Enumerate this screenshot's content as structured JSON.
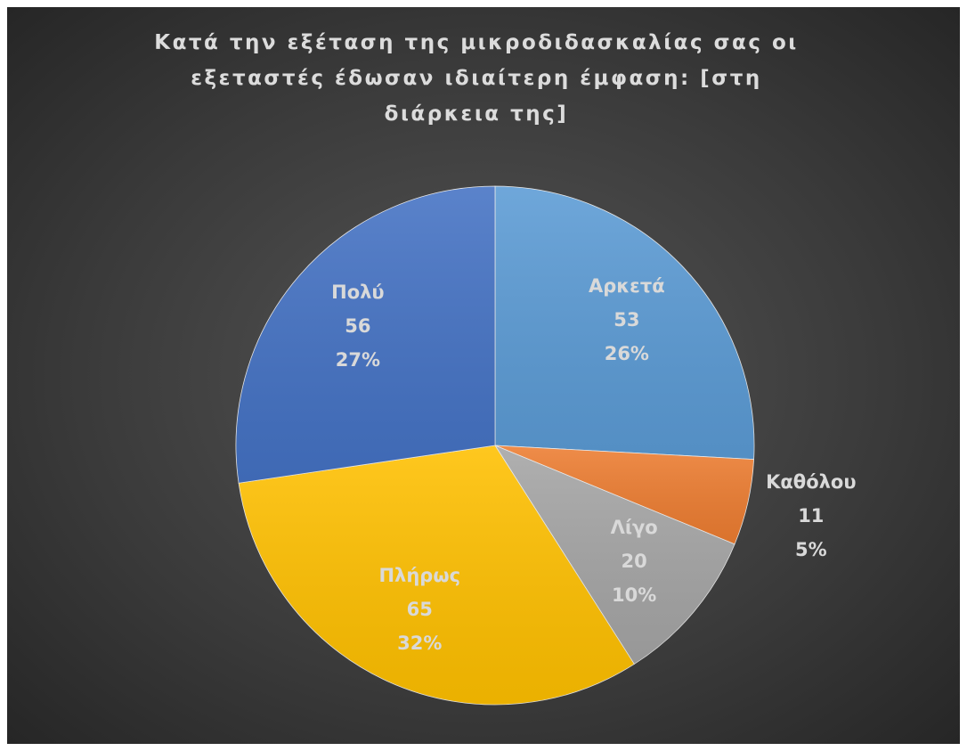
{
  "chart_data": {
    "type": "pie",
    "title": "Κατά την εξέταση της μικροδιδασκαλίας σας οι εξεταστές έδωσαν ιδιαίτερη έμφαση: [στη διάρκεια της]",
    "categories": [
      "Αρκετά",
      "Καθόλου",
      "Λίγο",
      "Πλήρως",
      "Πολύ"
    ],
    "values": [
      53,
      11,
      20,
      65,
      56
    ],
    "percent_labels": [
      "26%",
      "5%",
      "10%",
      "32%",
      "27%"
    ],
    "colors": [
      "#5b9bd5",
      "#ed7d31",
      "#a5a5a5",
      "#ffc000",
      "#4472c4"
    ]
  }
}
